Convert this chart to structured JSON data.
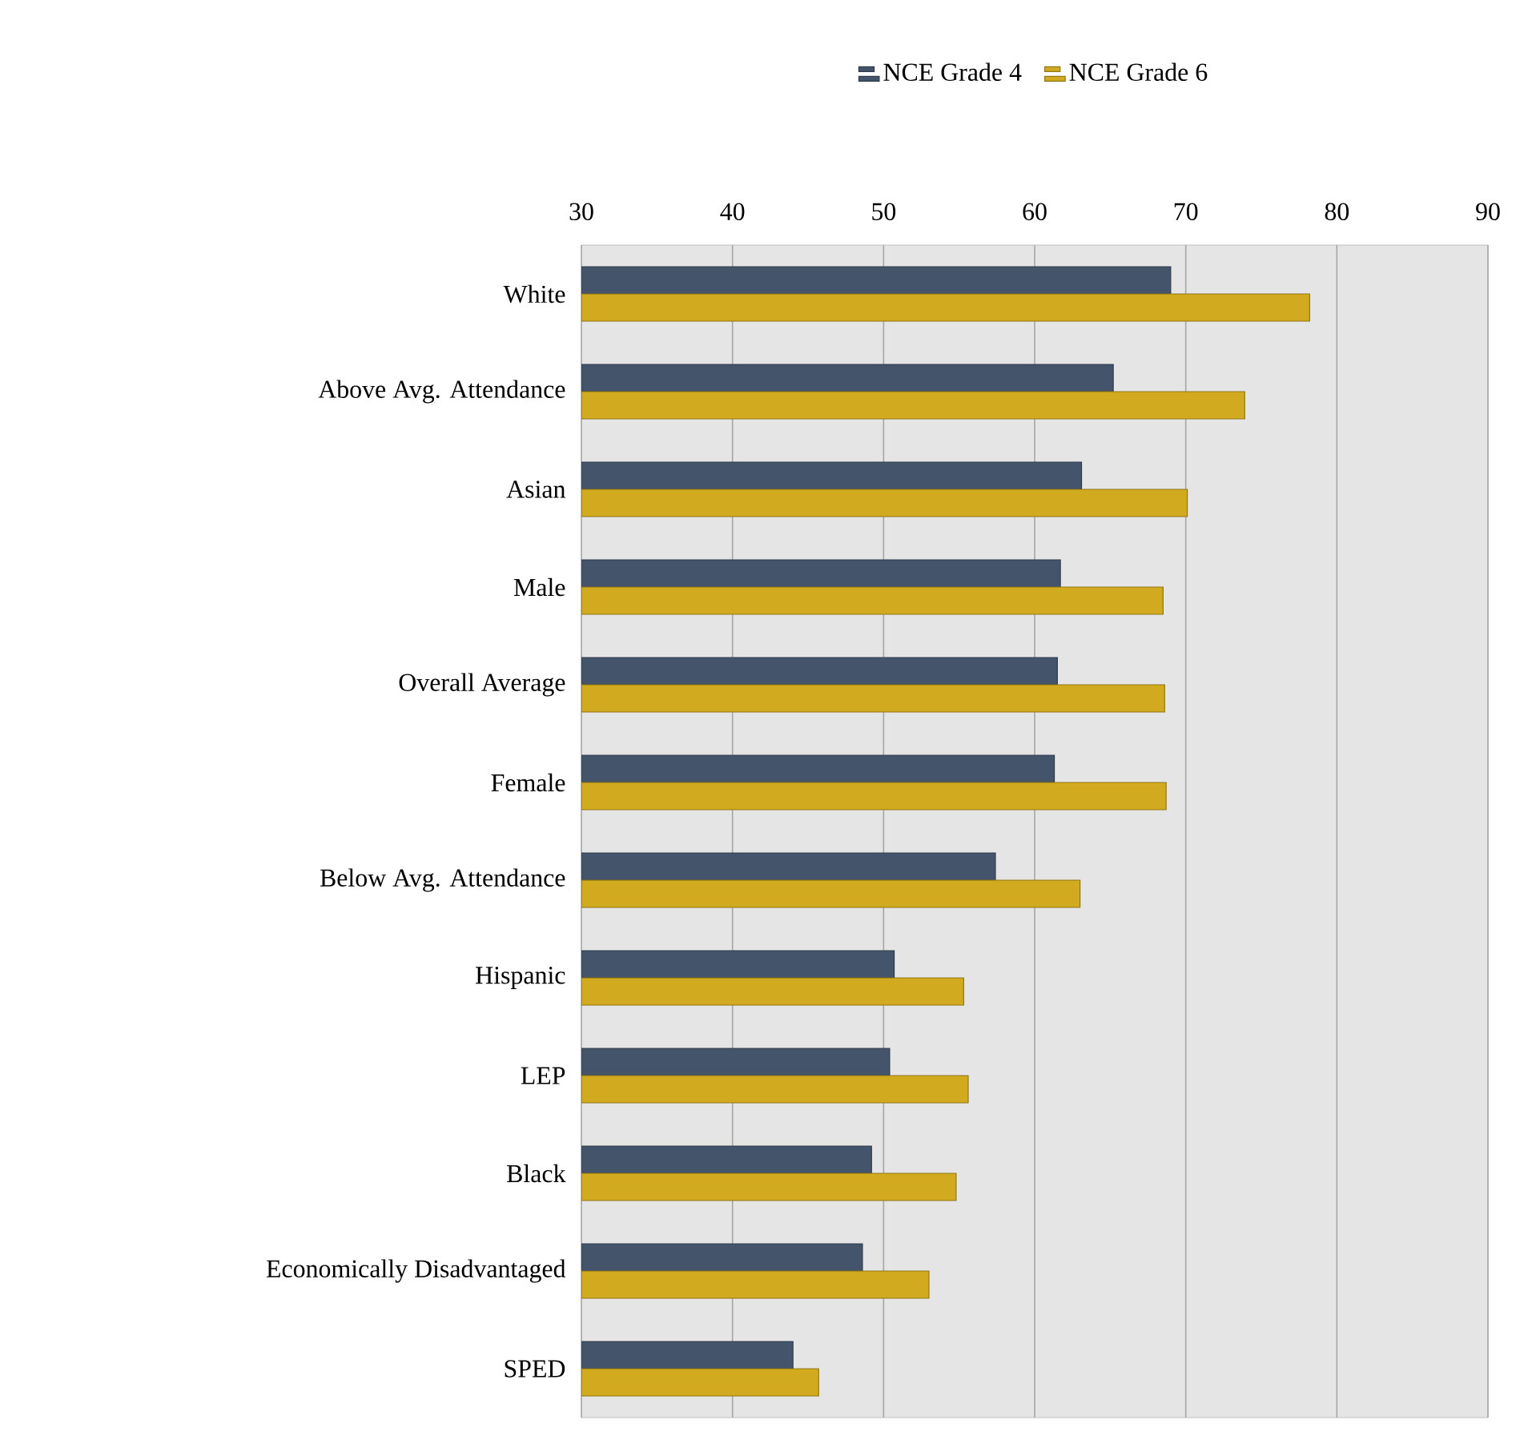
{
  "chart_data": {
    "type": "bar",
    "orientation": "horizontal",
    "categories": [
      "White",
      "Above Avg. Attendance",
      "Asian",
      "Male",
      "Overall Average",
      "Female",
      "Below Avg. Attendance",
      "Hispanic",
      "LEP",
      "Black",
      "Economically Disadvantaged",
      "SPED"
    ],
    "series": [
      {
        "name": "NCE Grade 4",
        "color": "#44546a",
        "values": [
          69.0,
          65.2,
          63.1,
          61.7,
          61.5,
          61.3,
          57.4,
          50.7,
          50.4,
          49.2,
          48.6,
          44.0
        ]
      },
      {
        "name": "NCE Grade 6",
        "color": "#d1aa1f",
        "values": [
          78.2,
          73.9,
          70.1,
          68.5,
          68.6,
          68.7,
          63.0,
          55.3,
          55.6,
          54.8,
          53.0,
          45.7
        ]
      }
    ],
    "xlim": [
      30,
      90
    ],
    "xticks": [
      30,
      40,
      50,
      60,
      70,
      80,
      90
    ],
    "grid": "x",
    "legend": "top"
  }
}
